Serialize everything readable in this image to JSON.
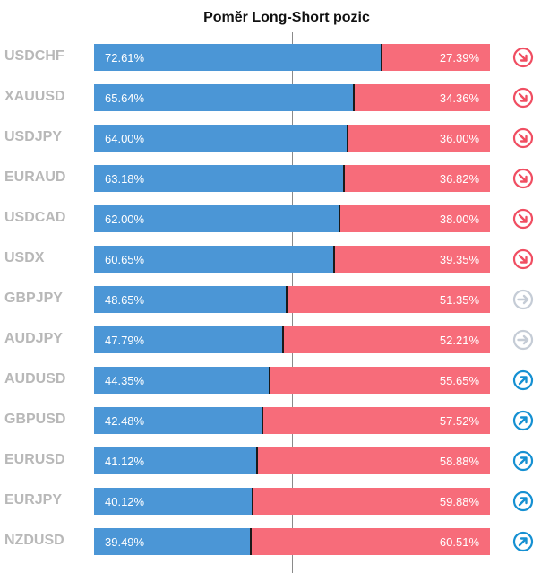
{
  "title": "Poměr Long-Short pozic",
  "colors": {
    "long": "#4b96d6",
    "short": "#f76c7a",
    "down": "#f04e62",
    "neutral": "#c5ccd6",
    "up": "#1590d2"
  },
  "chart_data": {
    "type": "bar",
    "title": "Poměr Long-Short pozic",
    "categories": [
      "USDCHF",
      "XAUUSD",
      "USDJPY",
      "EURAUD",
      "USDCAD",
      "USDX",
      "GBPJPY",
      "AUDJPY",
      "AUDUSD",
      "GBPUSD",
      "EURUSD",
      "EURJPY",
      "NZDUSD"
    ],
    "series": [
      {
        "values": [
          72.61,
          65.64,
          64.0,
          63.18,
          62.0,
          60.65,
          48.65,
          47.79,
          44.35,
          42.48,
          41.12,
          40.12,
          39.49
        ]
      },
      {
        "values": [
          27.39,
          34.36,
          36.0,
          36.82,
          38.0,
          39.35,
          51.35,
          52.21,
          55.65,
          57.52,
          58.88,
          59.88,
          60.51
        ]
      }
    ],
    "long_labels": [
      "72.61%",
      "65.64%",
      "64.00%",
      "63.18%",
      "62.00%",
      "60.65%",
      "48.65%",
      "47.79%",
      "44.35%",
      "42.48%",
      "41.12%",
      "40.12%",
      "39.49%"
    ],
    "short_labels": [
      "27.39%",
      "34.36%",
      "36.00%",
      "36.82%",
      "38.00%",
      "39.35%",
      "51.35%",
      "52.21%",
      "55.65%",
      "57.52%",
      "58.88%",
      "59.88%",
      "60.51%"
    ],
    "signals": [
      "down-right-arrow-icon",
      "down-right-arrow-icon",
      "down-right-arrow-icon",
      "down-right-arrow-icon",
      "down-right-arrow-icon",
      "down-right-arrow-icon",
      "right-arrow-icon",
      "right-arrow-icon",
      "up-right-arrow-icon",
      "up-right-arrow-icon",
      "up-right-arrow-icon",
      "up-right-arrow-icon",
      "up-right-arrow-icon"
    ],
    "stacked": true,
    "ylim": [
      0,
      100
    ]
  }
}
